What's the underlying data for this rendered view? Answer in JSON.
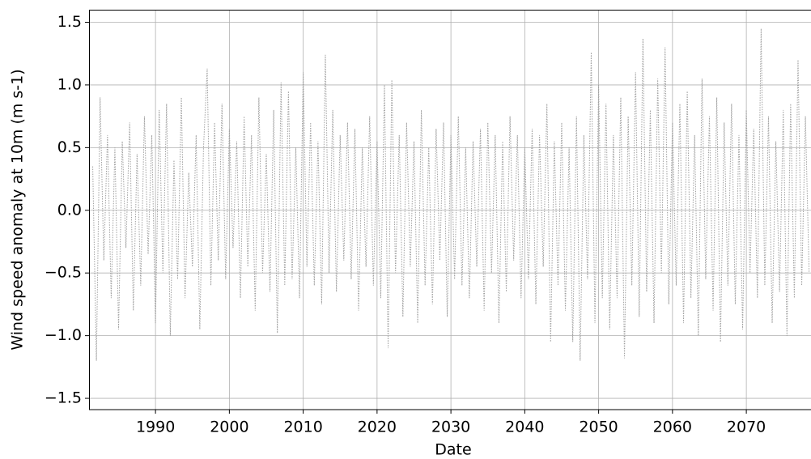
{
  "chart_data": {
    "type": "line",
    "xlabel": "Date",
    "ylabel": "Wind speed anomaly at 10m (m s-1)",
    "xlim": [
      1981,
      2078.8
    ],
    "ylim": [
      -1.59,
      1.6
    ],
    "xticks": [
      1990,
      2000,
      2010,
      2020,
      2030,
      2040,
      2050,
      2060,
      2070
    ],
    "yticks": [
      {
        "value": -1.5,
        "label": "−1.5"
      },
      {
        "value": -1,
        "label": "−1.0"
      },
      {
        "value": -0.5,
        "label": "−0.5"
      },
      {
        "value": 0,
        "label": "0.0"
      },
      0.5,
      {
        "value": 1,
        "label": "1.0"
      },
      1.5
    ],
    "grid": true,
    "series": [
      {
        "color": "#a0a0a0",
        "x": [
          1981.5,
          1982,
          1982.5,
          1983,
          1983.5,
          1984,
          1984.5,
          1985,
          1985.5,
          1986,
          1986.5,
          1987,
          1987.5,
          1988,
          1988.5,
          1989,
          1989.5,
          1990,
          1990.5,
          1991,
          1991.5,
          1992,
          1992.5,
          1993,
          1993.5,
          1994,
          1994.5,
          1995,
          1995.5,
          1996,
          1996.5,
          1997,
          1997.5,
          1998,
          1998.5,
          1999,
          1999.5,
          2000,
          2000.5,
          2001,
          2001.5,
          2002,
          2002.5,
          2003,
          2003.5,
          2004,
          2004.5,
          2005,
          2005.5,
          2006,
          2006.5,
          2007,
          2007.5,
          2008,
          2008.5,
          2009,
          2009.5,
          2010,
          2010.5,
          2011,
          2011.5,
          2012,
          2012.5,
          2013,
          2013.5,
          2014,
          2014.5,
          2015,
          2015.5,
          2016,
          2016.5,
          2017,
          2017.5,
          2018,
          2018.5,
          2019,
          2019.5,
          2020,
          2020.5,
          2021,
          2021.5,
          2022,
          2022.5,
          2023,
          2023.5,
          2024,
          2024.5,
          2025,
          2025.5,
          2026,
          2026.5,
          2027,
          2027.5,
          2028,
          2028.5,
          2029,
          2029.5,
          2030,
          2030.5,
          2031,
          2031.5,
          2032,
          2032.5,
          2033,
          2033.5,
          2034,
          2034.5,
          2035,
          2035.5,
          2036,
          2036.5,
          2037,
          2037.5,
          2038,
          2038.5,
          2039,
          2039.5,
          2040,
          2040.5,
          2041,
          2041.5,
          2042,
          2042.5,
          2043,
          2043.5,
          2044,
          2044.5,
          2045,
          2045.5,
          2046,
          2046.5,
          2047,
          2047.5,
          2048,
          2048.5,
          2049,
          2049.5,
          2050,
          2050.5,
          2051,
          2051.5,
          2052,
          2052.5,
          2053,
          2053.5,
          2054,
          2054.5,
          2055,
          2055.5,
          2056,
          2056.5,
          2057,
          2057.5,
          2058,
          2058.5,
          2059,
          2059.5,
          2060,
          2060.5,
          2061,
          2061.5,
          2062,
          2062.5,
          2063,
          2063.5,
          2064,
          2064.5,
          2065,
          2065.5,
          2066,
          2066.5,
          2067,
          2067.5,
          2068,
          2068.5,
          2069,
          2069.5,
          2070,
          2070.5,
          2071,
          2071.5,
          2072,
          2072.5,
          2073,
          2073.5,
          2074,
          2074.5,
          2075,
          2075.5,
          2076,
          2076.5,
          2077,
          2077.5,
          2078,
          2078.5
        ],
        "values": [
          0.35,
          -1.2,
          0.9,
          -0.4,
          0.6,
          -0.7,
          0.5,
          -0.95,
          0.55,
          -0.3,
          0.7,
          -0.8,
          0.45,
          -0.6,
          0.75,
          -0.35,
          0.6,
          -0.9,
          0.8,
          -0.5,
          0.85,
          -1.0,
          0.4,
          -0.55,
          0.9,
          -0.7,
          0.3,
          -0.45,
          0.6,
          -0.95,
          0.5,
          1.13,
          -0.6,
          0.7,
          -0.4,
          0.85,
          -0.55,
          0.65,
          -0.3,
          0.55,
          -0.7,
          0.75,
          -0.45,
          0.6,
          -0.8,
          0.9,
          -0.5,
          0.45,
          -0.65,
          0.8,
          -0.98,
          1.02,
          -0.6,
          0.95,
          -0.55,
          0.5,
          -0.7,
          1.1,
          -0.45,
          0.7,
          -0.6,
          0.55,
          -0.75,
          1.24,
          -0.5,
          0.8,
          -0.65,
          0.6,
          -0.4,
          0.7,
          -0.55,
          0.65,
          -0.8,
          0.5,
          -0.45,
          0.75,
          -0.6,
          0.55,
          -0.7,
          1.0,
          -1.1,
          1.04,
          -0.5,
          0.6,
          -0.85,
          0.7,
          -0.45,
          0.55,
          -0.9,
          0.8,
          -0.6,
          0.5,
          -0.75,
          0.65,
          -0.4,
          0.7,
          -0.85,
          0.6,
          -0.55,
          0.75,
          -0.6,
          0.5,
          -0.7,
          0.55,
          -0.45,
          0.65,
          -0.8,
          0.7,
          -0.5,
          0.6,
          -0.9,
          0.55,
          -0.65,
          0.75,
          -0.4,
          0.6,
          -0.7,
          0.5,
          -0.55,
          0.65,
          -0.75,
          0.6,
          -0.45,
          0.85,
          -1.05,
          0.55,
          -0.6,
          0.7,
          -0.8,
          0.5,
          -1.05,
          0.75,
          -1.2,
          0.6,
          -0.55,
          1.26,
          -0.9,
          1.0,
          -0.7,
          0.85,
          -0.95,
          0.6,
          -0.7,
          0.9,
          -1.18,
          0.75,
          -0.6,
          1.1,
          -0.85,
          1.37,
          -0.65,
          0.8,
          -0.9,
          1.05,
          -0.5,
          1.3,
          -0.75,
          0.7,
          -0.6,
          0.85,
          -0.9,
          0.95,
          -0.7,
          0.6,
          -1.0,
          1.05,
          -0.55,
          0.75,
          -0.8,
          0.9,
          -1.05,
          0.7,
          -0.6,
          0.85,
          -0.75,
          0.6,
          -0.95,
          0.8,
          -0.5,
          0.65,
          -0.7,
          1.45,
          -0.6,
          0.75,
          -0.9,
          0.55,
          -0.65,
          0.8,
          -1.0,
          0.85,
          -0.7,
          1.2,
          -0.6,
          0.75,
          -0.5
        ]
      }
    ]
  }
}
